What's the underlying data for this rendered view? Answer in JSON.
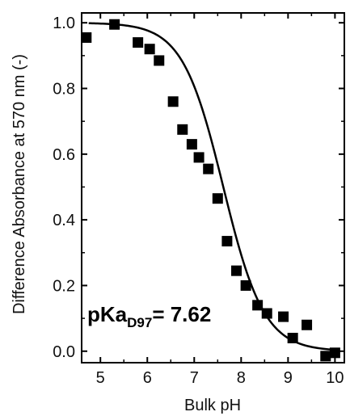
{
  "chart_data": {
    "type": "scatter",
    "title": "",
    "xlabel": "Bulk pH",
    "ylabel": "Difference Absorbance at 570 nm (-)",
    "xlim": [
      4.6,
      10.2
    ],
    "ylim": [
      -0.035,
      1.03
    ],
    "xticks": [
      5,
      6,
      7,
      8,
      9,
      10
    ],
    "yticks": [
      0.0,
      0.2,
      0.4,
      0.6,
      0.8,
      1.0
    ],
    "ytick_labels": [
      "0.0",
      "0.2",
      "0.4",
      "0.6",
      "0.8",
      "1.0"
    ],
    "grid": false,
    "series": [
      {
        "marker": "square",
        "color": "#000000",
        "x": [
          4.7,
          5.3,
          5.8,
          6.05,
          6.25,
          6.55,
          6.75,
          6.95,
          7.1,
          7.3,
          7.5,
          7.7,
          7.9,
          8.1,
          8.35,
          8.55,
          8.9,
          9.1,
          9.4,
          9.8,
          10.0
        ],
        "y": [
          0.955,
          0.995,
          0.94,
          0.92,
          0.885,
          0.76,
          0.675,
          0.63,
          0.59,
          0.555,
          0.465,
          0.335,
          0.245,
          0.2,
          0.14,
          0.115,
          0.105,
          0.04,
          0.08,
          -0.015,
          -0.005
        ]
      },
      {
        "line": "fit",
        "color": "#000000",
        "pKa": 7.62,
        "top": 1.0,
        "bottom": 0.0
      }
    ],
    "annotation": {
      "main": "pKa",
      "sub": "D97",
      "value": "= 7.62"
    }
  }
}
